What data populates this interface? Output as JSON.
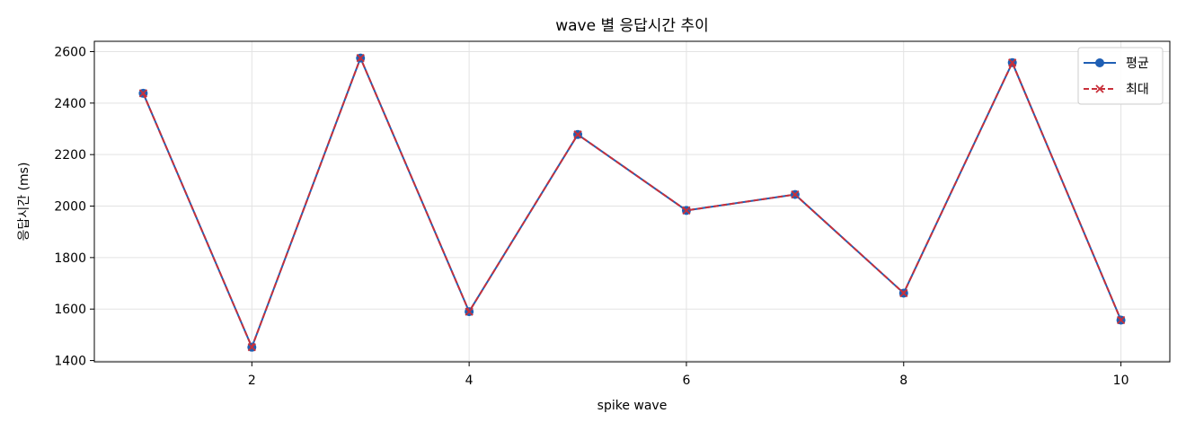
{
  "chart_data": {
    "type": "line",
    "title": "wave 별 응답시간 추이",
    "xlabel": "spike wave",
    "ylabel": "응답시간 (ms)",
    "x": [
      1,
      2,
      3,
      4,
      5,
      6,
      7,
      8,
      9,
      10
    ],
    "xlim": [
      0.55,
      10.45
    ],
    "ylim": [
      1395,
      2640
    ],
    "x_ticks": [
      2,
      4,
      6,
      8,
      10
    ],
    "y_ticks": [
      1400,
      1600,
      1800,
      2000,
      2200,
      2400,
      2600
    ],
    "grid": true,
    "legend_position": "top-right",
    "series": [
      {
        "name": "평균",
        "values": [
          2438,
          1452,
          2575,
          1590,
          2278,
          1983,
          2045,
          1662,
          2557,
          1557
        ],
        "color": "#1f5fb4",
        "line_style": "solid",
        "marker": "circle"
      },
      {
        "name": "최대",
        "values": [
          2438,
          1452,
          2575,
          1590,
          2278,
          1983,
          2045,
          1662,
          2557,
          1557
        ],
        "color": "#c8303a",
        "line_style": "dashed",
        "marker": "x"
      }
    ]
  }
}
